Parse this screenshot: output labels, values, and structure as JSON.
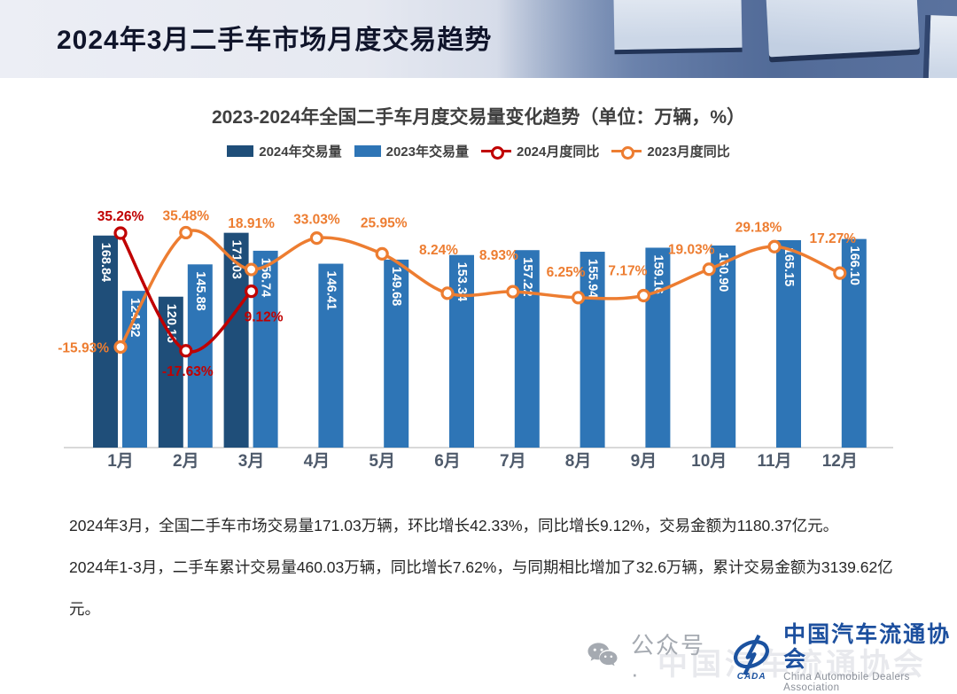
{
  "slide_title": "2024年3月二手车市场月度交易趋势",
  "chart": {
    "title": "2023-2024年全国二手车月度交易量变化趋势（单位：万辆，%）"
  },
  "chart_data": {
    "type": "bar",
    "combo": "bar+line",
    "title": "2023-2024年全国二手车月度交易量变化趋势",
    "unit_note": "单位：万辆，%",
    "categories": [
      "1月",
      "2月",
      "3月",
      "4月",
      "5月",
      "6月",
      "7月",
      "8月",
      "9月",
      "10月",
      "11月",
      "12月"
    ],
    "series": [
      {
        "name": "2024年交易量",
        "type": "bar",
        "color": "#1f4e79",
        "values": [
          168.84,
          120.16,
          171.03,
          null,
          null,
          null,
          null,
          null,
          null,
          null,
          null,
          null
        ]
      },
      {
        "name": "2023年交易量",
        "type": "bar",
        "color": "#2e75b6",
        "values": [
          124.82,
          145.88,
          156.74,
          146.41,
          149.68,
          153.34,
          157.22,
          155.94,
          159.16,
          160.9,
          165.15,
          166.1
        ]
      },
      {
        "name": "2024月度同比",
        "type": "line",
        "color": "#c00000",
        "values": [
          35.26,
          -17.63,
          9.12,
          null,
          null,
          null,
          null,
          null,
          null,
          null,
          null,
          null
        ]
      },
      {
        "name": "2023月度同比",
        "type": "line",
        "color": "#ed7d31",
        "values": [
          -15.93,
          35.48,
          18.91,
          33.03,
          25.95,
          8.24,
          8.93,
          6.25,
          7.17,
          19.03,
          29.18,
          17.27
        ]
      }
    ],
    "ylim_volume": [
      0,
      200
    ],
    "grid": false,
    "legend_position": "top"
  },
  "notes": {
    "p1": "2024年3月，全国二手车市场交易量171.03万辆，环比增长42.33%，同比增长9.12%，交易金额为1180.37亿元。",
    "p2": "2024年1-3月，二手车累计交易量460.03万辆，同比增长7.62%，与同期相比增加了32.6万辆，累计交易金额为3139.62亿元。"
  },
  "footer": {
    "wechat_label": "公众号 ·",
    "org_name_cn": "中国汽车流通协会",
    "org_name_en": "China Automobile Dealers Association",
    "logo_text": "CADA",
    "watermark": "中国汽车流通协会"
  }
}
